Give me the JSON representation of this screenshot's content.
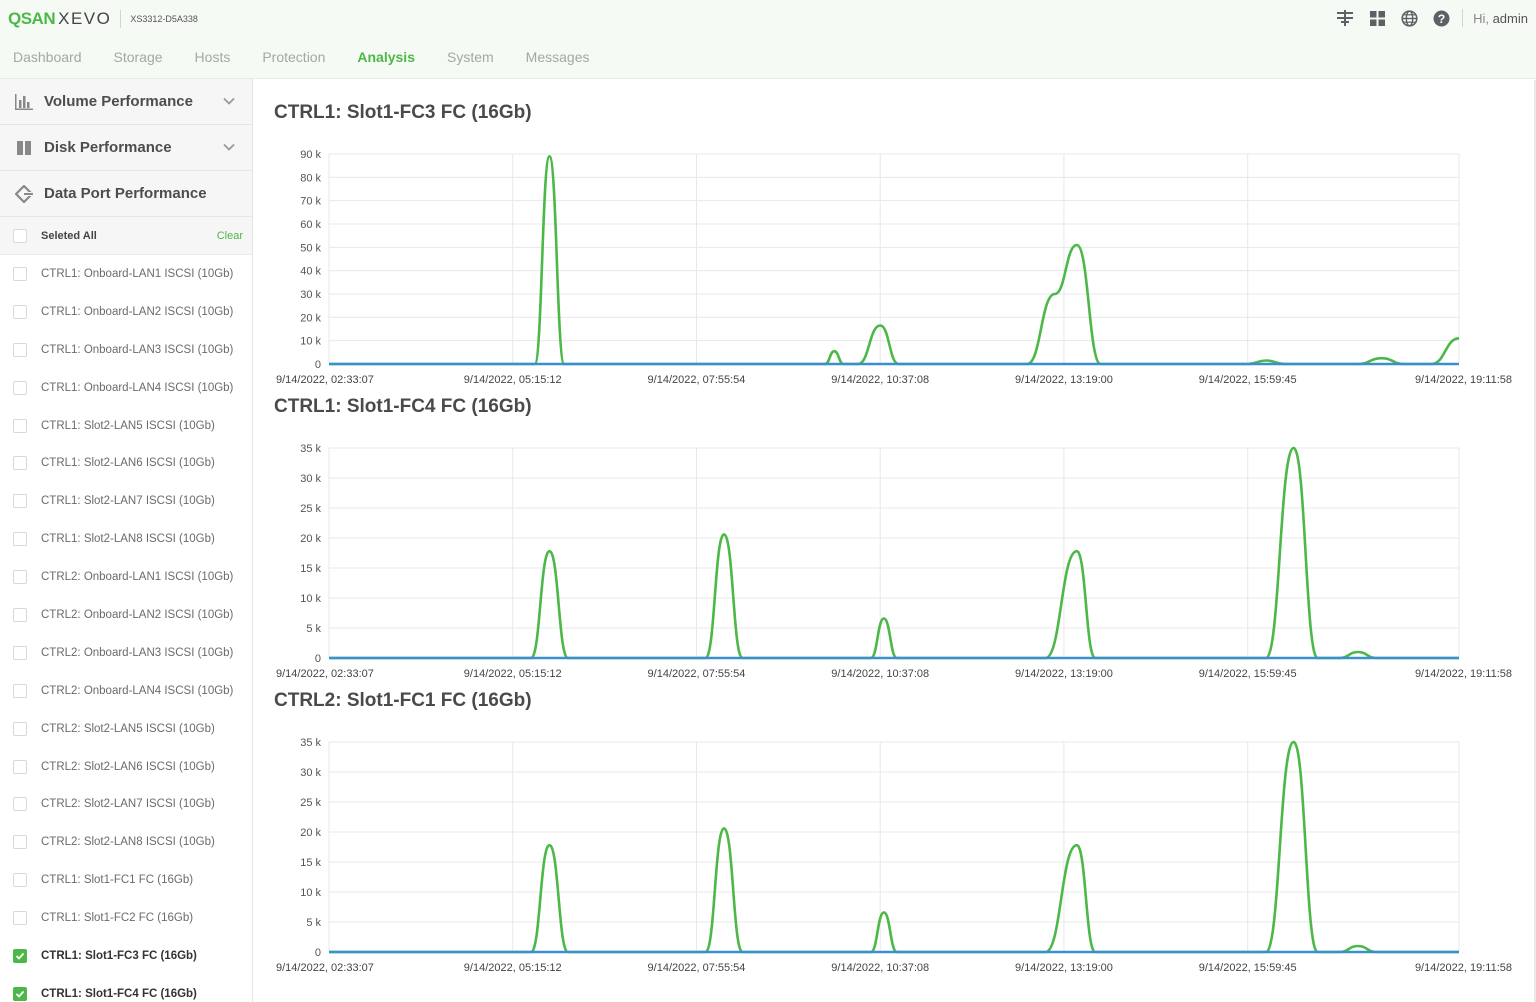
{
  "header": {
    "brand_qsan": "QSAN",
    "brand_xevo": "XEVO",
    "model": "XS3312-D5A338",
    "greeting_hi": "Hi,",
    "greeting_user": "admin",
    "icons": [
      "network-icon",
      "grid-icon",
      "globe-icon",
      "help-icon"
    ]
  },
  "nav": {
    "tabs": [
      {
        "label": "Dashboard",
        "active": false
      },
      {
        "label": "Storage",
        "active": false
      },
      {
        "label": "Hosts",
        "active": false
      },
      {
        "label": "Protection",
        "active": false
      },
      {
        "label": "Analysis",
        "active": true
      },
      {
        "label": "System",
        "active": false
      },
      {
        "label": "Messages",
        "active": false
      }
    ]
  },
  "sidebar": {
    "sections": [
      {
        "label": "Volume Performance",
        "icon": "bar-chart-icon"
      },
      {
        "label": "Disk Performance",
        "icon": "disk-icon"
      },
      {
        "label": "Data Port Performance",
        "icon": "port-icon"
      }
    ],
    "select_all_label": "Seleted All",
    "clear_label": "Clear",
    "ports": [
      {
        "label": "CTRL1: Onboard-LAN1 ISCSI (10Gb)",
        "checked": false
      },
      {
        "label": "CTRL1: Onboard-LAN2 ISCSI (10Gb)",
        "checked": false
      },
      {
        "label": "CTRL1: Onboard-LAN3 ISCSI (10Gb)",
        "checked": false
      },
      {
        "label": "CTRL1: Onboard-LAN4 ISCSI (10Gb)",
        "checked": false
      },
      {
        "label": "CTRL1: Slot2-LAN5 ISCSI (10Gb)",
        "checked": false
      },
      {
        "label": "CTRL1: Slot2-LAN6 ISCSI (10Gb)",
        "checked": false
      },
      {
        "label": "CTRL1: Slot2-LAN7 ISCSI (10Gb)",
        "checked": false
      },
      {
        "label": "CTRL1: Slot2-LAN8 ISCSI (10Gb)",
        "checked": false
      },
      {
        "label": "CTRL2: Onboard-LAN1 ISCSI (10Gb)",
        "checked": false
      },
      {
        "label": "CTRL2: Onboard-LAN2 ISCSI (10Gb)",
        "checked": false
      },
      {
        "label": "CTRL2: Onboard-LAN3 ISCSI (10Gb)",
        "checked": false
      },
      {
        "label": "CTRL2: Onboard-LAN4 ISCSI (10Gb)",
        "checked": false
      },
      {
        "label": "CTRL2: Slot2-LAN5 ISCSI (10Gb)",
        "checked": false
      },
      {
        "label": "CTRL2: Slot2-LAN6 ISCSI (10Gb)",
        "checked": false
      },
      {
        "label": "CTRL2: Slot2-LAN7 ISCSI (10Gb)",
        "checked": false
      },
      {
        "label": "CTRL2: Slot2-LAN8 ISCSI (10Gb)",
        "checked": false
      },
      {
        "label": "CTRL1: Slot1-FC1 FC (16Gb)",
        "checked": false
      },
      {
        "label": "CTRL1: Slot1-FC2 FC (16Gb)",
        "checked": false
      },
      {
        "label": "CTRL1: Slot1-FC3 FC (16Gb)",
        "checked": true
      },
      {
        "label": "CTRL1: Slot1-FC4 FC (16Gb)",
        "checked": true
      }
    ]
  },
  "colors": {
    "accent": "#4cb847",
    "series_green": "#4cb847",
    "series_blue": "#3a8fd1",
    "grid": "#e8e8e8"
  },
  "chart_data": [
    {
      "type": "line",
      "title": "CTRL1: Slot1-FC3 FC (16Gb)",
      "x_ticks": [
        "9/14/2022, 02:33:07",
        "9/14/2022, 05:15:12",
        "9/14/2022, 07:55:54",
        "9/14/2022, 10:37:08",
        "9/14/2022, 13:19:00",
        "9/14/2022, 15:59:45",
        "9/14/2022, 19:11:58"
      ],
      "y_ticks": [
        "0",
        "10 k",
        "20 k",
        "30 k",
        "40 k",
        "50 k",
        "60 k",
        "70 k",
        "80 k",
        "90 k"
      ],
      "ylim": [
        0,
        90000
      ],
      "grid": true,
      "series": [
        {
          "color": "#4cb847",
          "x": [
            0,
            1.12,
            1.2,
            1.28,
            2.7,
            2.75,
            2.8,
            2.88,
            3.0,
            3.1,
            3.8,
            3.95,
            4.07,
            4.2,
            5.0,
            5.1,
            5.2,
            5.6,
            5.73,
            5.85,
            6.0,
            6.15
          ],
          "y": [
            0,
            0,
            89000,
            0,
            0,
            5500,
            0,
            0,
            16500,
            0,
            0,
            30000,
            51000,
            0,
            0,
            1500,
            0,
            0,
            2500,
            0,
            0,
            11000
          ]
        },
        {
          "color": "#3a8fd1",
          "x": [
            0,
            6.15
          ],
          "y": [
            0,
            0
          ]
        }
      ]
    },
    {
      "type": "line",
      "title": "CTRL1: Slot1-FC4 FC (16Gb)",
      "x_ticks": [
        "9/14/2022, 02:33:07",
        "9/14/2022, 05:15:12",
        "9/14/2022, 07:55:54",
        "9/14/2022, 10:37:08",
        "9/14/2022, 13:19:00",
        "9/14/2022, 15:59:45",
        "9/14/2022, 19:11:58"
      ],
      "y_ticks": [
        "0",
        "5 k",
        "10 k",
        "15 k",
        "20 k",
        "25 k",
        "30 k",
        "35 k"
      ],
      "ylim": [
        0,
        35000
      ],
      "grid": true,
      "series": [
        {
          "color": "#4cb847",
          "x": [
            0,
            1.1,
            1.2,
            1.3,
            2.05,
            2.15,
            2.25,
            2.95,
            3.02,
            3.09,
            3.9,
            4.07,
            4.17,
            5.1,
            5.25,
            5.38,
            5.5,
            5.6,
            5.7,
            6.15
          ],
          "y": [
            0,
            0,
            17800,
            0,
            0,
            20600,
            0,
            0,
            6600,
            0,
            0,
            17800,
            0,
            0,
            35000,
            0,
            0,
            1000,
            0,
            0
          ]
        },
        {
          "color": "#3a8fd1",
          "x": [
            0,
            6.15
          ],
          "y": [
            0,
            0
          ]
        }
      ]
    },
    {
      "type": "line",
      "title": "CTRL2: Slot1-FC1 FC (16Gb)",
      "x_ticks": [
        "9/14/2022, 02:33:07",
        "9/14/2022, 05:15:12",
        "9/14/2022, 07:55:54",
        "9/14/2022, 10:37:08",
        "9/14/2022, 13:19:00",
        "9/14/2022, 15:59:45",
        "9/14/2022, 19:11:58"
      ],
      "y_ticks": [
        "0",
        "5 k",
        "10 k",
        "15 k",
        "20 k",
        "25 k",
        "30 k",
        "35 k"
      ],
      "ylim": [
        0,
        35000
      ],
      "grid": true,
      "series": [
        {
          "color": "#4cb847",
          "x": [
            0,
            1.1,
            1.2,
            1.3,
            2.05,
            2.15,
            2.25,
            2.95,
            3.02,
            3.09,
            3.9,
            4.07,
            4.17,
            5.1,
            5.25,
            5.38,
            5.5,
            5.6,
            5.7,
            6.15
          ],
          "y": [
            0,
            0,
            17800,
            0,
            0,
            20600,
            0,
            0,
            6600,
            0,
            0,
            17800,
            0,
            0,
            35000,
            0,
            0,
            1000,
            0,
            0
          ]
        },
        {
          "color": "#3a8fd1",
          "x": [
            0,
            6.15
          ],
          "y": [
            0,
            0
          ]
        }
      ]
    }
  ]
}
